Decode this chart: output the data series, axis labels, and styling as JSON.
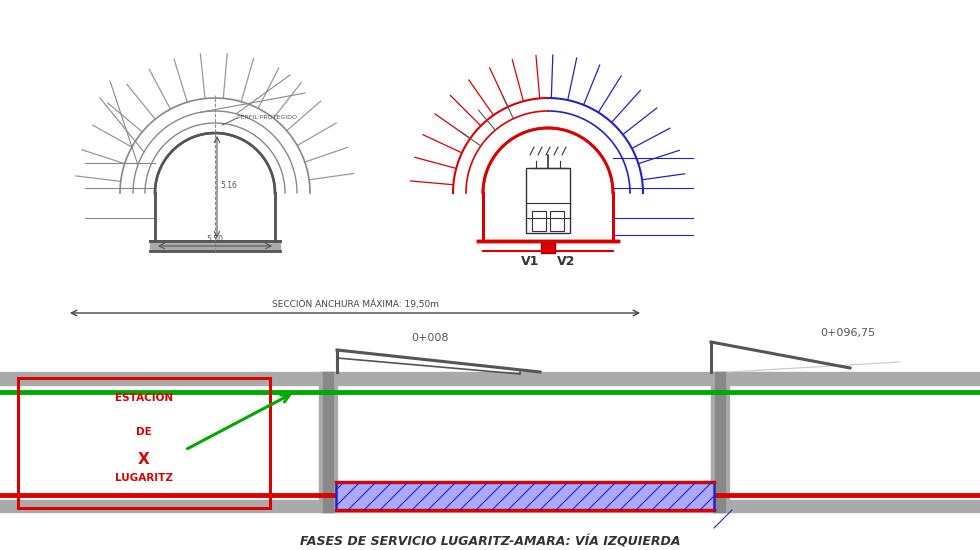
{
  "bg_color": "#ffffff",
  "title_bottom": "FASES DE SERVICIO LUGARITZ-AMARA: VÍA IZQUIERDA",
  "v1_label": "V1",
  "v2_label": "V2",
  "section_label": "SECCIÓN ANCHURA MÁXIMA: 19,50m",
  "label_008": "0+008",
  "label_096": "0+096,75",
  "tunnel_gray": "#888888",
  "tunnel_red": "#dd0000",
  "tunnel_blue": "#2222cc",
  "green_color": "#00aa00",
  "red_color": "#dd0000",
  "dark_gray": "#444444",
  "medium_gray": "#777777",
  "light_gray": "#bbbbbb",
  "wall_gray": "#999999"
}
